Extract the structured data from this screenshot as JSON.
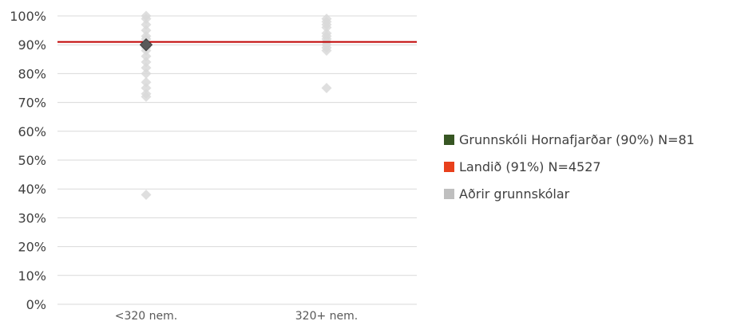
{
  "chart_data": {
    "type": "scatter",
    "categories": [
      "<320 nem.",
      "320+ nem."
    ],
    "y_ticks": [
      "0%",
      "10%",
      "20%",
      "30%",
      "40%",
      "50%",
      "60%",
      "70%",
      "80%",
      "90%",
      "100%"
    ],
    "ylim": [
      0,
      100
    ],
    "grid": true,
    "legend_position": "right",
    "reference_line": {
      "name": "Landið (91%) N=4527",
      "value": 91,
      "color": "#c00000"
    },
    "series": [
      {
        "name": "Aðrir grunnskólar",
        "color": "#d9d9d9",
        "points": [
          {
            "x": "<320 nem.",
            "y": 100
          },
          {
            "x": "<320 nem.",
            "y": 99
          },
          {
            "x": "<320 nem.",
            "y": 97
          },
          {
            "x": "<320 nem.",
            "y": 95
          },
          {
            "x": "<320 nem.",
            "y": 93
          },
          {
            "x": "<320 nem.",
            "y": 92
          },
          {
            "x": "<320 nem.",
            "y": 89
          },
          {
            "x": "<320 nem.",
            "y": 88
          },
          {
            "x": "<320 nem.",
            "y": 86
          },
          {
            "x": "<320 nem.",
            "y": 84
          },
          {
            "x": "<320 nem.",
            "y": 82
          },
          {
            "x": "<320 nem.",
            "y": 80
          },
          {
            "x": "<320 nem.",
            "y": 77
          },
          {
            "x": "<320 nem.",
            "y": 75
          },
          {
            "x": "<320 nem.",
            "y": 73
          },
          {
            "x": "<320 nem.",
            "y": 72
          },
          {
            "x": "<320 nem.",
            "y": 38
          },
          {
            "x": "320+ nem.",
            "y": 99
          },
          {
            "x": "320+ nem.",
            "y": 98
          },
          {
            "x": "320+ nem.",
            "y": 97
          },
          {
            "x": "320+ nem.",
            "y": 96
          },
          {
            "x": "320+ nem.",
            "y": 94
          },
          {
            "x": "320+ nem.",
            "y": 93
          },
          {
            "x": "320+ nem.",
            "y": 92
          },
          {
            "x": "320+ nem.",
            "y": 91
          },
          {
            "x": "320+ nem.",
            "y": 90
          },
          {
            "x": "320+ nem.",
            "y": 89
          },
          {
            "x": "320+ nem.",
            "y": 88
          },
          {
            "x": "320+ nem.",
            "y": 75
          }
        ]
      },
      {
        "name": "Grunnskóli Hornafjarðar (90%) N=81",
        "color": "#595959",
        "points": [
          {
            "x": "<320 nem.",
            "y": 90
          }
        ]
      }
    ],
    "legend": [
      {
        "label": "Grunnskóli Hornafjarðar (90%) N=81",
        "color": "#375623"
      },
      {
        "label": "Landið (91%) N=4527",
        "color": "#e8401c"
      },
      {
        "label": "Aðrir grunnskólar",
        "color": "#bfbfbf"
      }
    ]
  }
}
